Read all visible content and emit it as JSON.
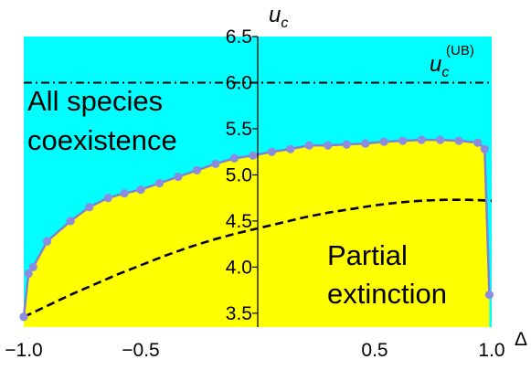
{
  "chart_data": {
    "type": "area",
    "title": "",
    "xlabel": "Δ",
    "ylabel": "u_c",
    "xlim": [
      -1.0,
      1.0
    ],
    "ylim": [
      3.35,
      6.5
    ],
    "x_ticks": [
      -1.0,
      -0.5,
      0.5,
      1.0
    ],
    "x_tick_labels": [
      "-1.0",
      "-0.5",
      "0.5",
      "1.0"
    ],
    "y_ticks": [
      3.5,
      4.0,
      4.5,
      5.0,
      5.5,
      6.0,
      6.5
    ],
    "y_tick_labels": [
      "3.5",
      "4.0",
      "4.5",
      "5.0",
      "5.5",
      "6.0",
      "6.5"
    ],
    "colors": {
      "upper_region": "#00ffff",
      "lower_region": "#ffff00",
      "boundary": "#7f7fd5",
      "markers": "#8b8be0"
    },
    "series": [
      {
        "kind": "boundary-points",
        "x": [
          -1.0,
          -0.98,
          -0.96,
          -0.9,
          -0.8,
          -0.72,
          -0.64,
          -0.57,
          -0.5,
          -0.42,
          -0.34,
          -0.26,
          -0.18,
          -0.1,
          -0.02,
          0.06,
          0.14,
          0.22,
          0.3,
          0.38,
          0.46,
          0.54,
          0.62,
          0.7,
          0.78,
          0.86,
          0.94,
          0.97,
          0.99
        ],
        "y": [
          3.46,
          3.93,
          4.0,
          4.28,
          4.5,
          4.65,
          4.75,
          4.8,
          4.84,
          4.91,
          4.98,
          5.05,
          5.12,
          5.18,
          5.21,
          5.25,
          5.28,
          5.32,
          5.32,
          5.33,
          5.34,
          5.36,
          5.37,
          5.38,
          5.38,
          5.37,
          5.35,
          5.28,
          3.7
        ]
      },
      {
        "kind": "dashed-curve",
        "x": [
          -1.0,
          -0.9,
          -0.8,
          -0.7,
          -0.6,
          -0.5,
          -0.4,
          -0.3,
          -0.2,
          -0.1,
          0.0,
          0.1,
          0.2,
          0.3,
          0.4,
          0.5,
          0.6,
          0.7,
          0.8,
          0.9,
          1.0
        ],
        "y": [
          3.46,
          3.58,
          3.7,
          3.81,
          3.92,
          4.02,
          4.12,
          4.21,
          4.29,
          4.36,
          4.42,
          4.48,
          4.54,
          4.59,
          4.63,
          4.67,
          4.7,
          4.72,
          4.73,
          4.73,
          4.72
        ]
      },
      {
        "kind": "dash-dot-line",
        "label": "u_c^(UB)",
        "y": 6.0
      }
    ],
    "annotations": [
      {
        "text": "All species",
        "region": "upper"
      },
      {
        "text": "coexistence",
        "region": "upper"
      },
      {
        "text": "Partial",
        "region": "lower"
      },
      {
        "text": "extinction",
        "region": "lower"
      }
    ],
    "ub_label": {
      "base": "u",
      "sub": "c",
      "sup": "(UB)"
    }
  }
}
